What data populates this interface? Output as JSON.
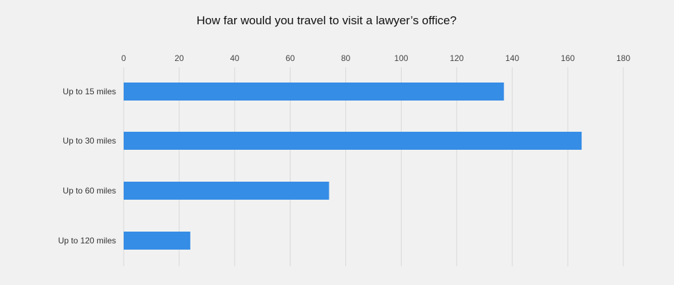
{
  "chart_data": {
    "type": "bar",
    "orientation": "horizontal",
    "title": "How far would you travel to visit a lawyer’s office?",
    "categories": [
      "Up to 15 miles",
      "Up to 30 miles",
      "Up to 60 miles",
      "Up to 120 miles"
    ],
    "values": [
      137,
      165,
      74,
      24
    ],
    "x_ticks": [
      "0",
      "20",
      "40",
      "60",
      "80",
      "100",
      "120",
      "140",
      "160",
      "180"
    ],
    "xlim": [
      0,
      180
    ],
    "grid": true,
    "legend": "none",
    "bar_color": "#368de6",
    "grid_color": "#d9d9d9",
    "background": "#f1f1f1"
  }
}
